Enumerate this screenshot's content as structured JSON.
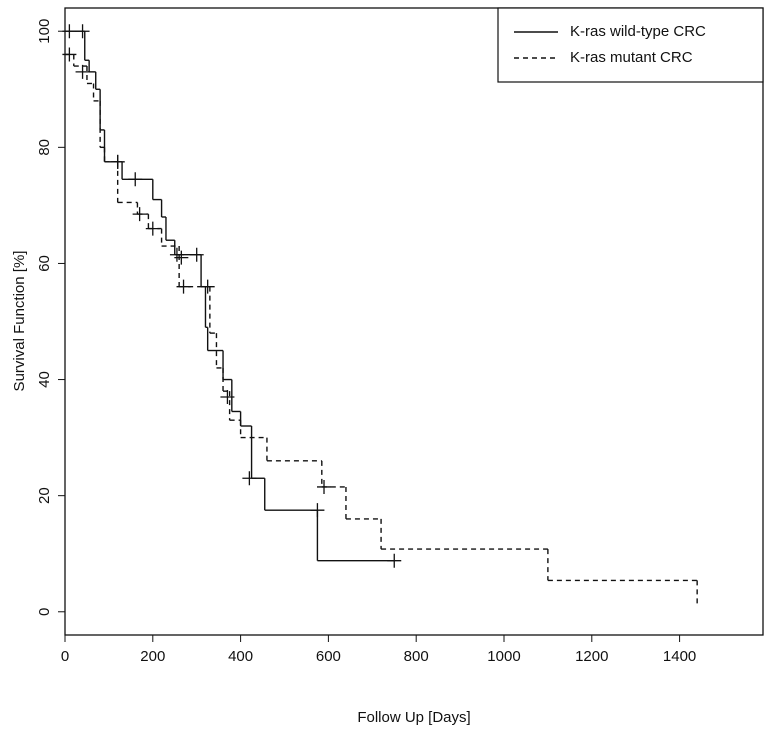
{
  "chart_data": {
    "type": "survival",
    "x_label": "Follow Up [Days]",
    "y_label": "Survival Function [%]",
    "xlim": [
      0,
      1590
    ],
    "ylim": [
      -4,
      104
    ],
    "xticks": [
      0,
      200,
      400,
      600,
      800,
      1000,
      1200,
      1400
    ],
    "yticks": [
      0,
      20,
      40,
      60,
      80,
      100
    ],
    "legend": "top-right",
    "series": [
      {
        "name": "K-ras wild-type CRC",
        "color": "#111111",
        "dash": "solid",
        "x": [
          0,
          45,
          55,
          70,
          80,
          90,
          130,
          200,
          220,
          230,
          250,
          310,
          320,
          325,
          360,
          380,
          400,
          425,
          455,
          575,
          750
        ],
        "values": [
          100,
          95,
          93,
          90,
          83,
          77.5,
          74.5,
          71,
          68,
          64,
          61.5,
          56,
          49,
          45,
          40,
          34.5,
          32,
          23,
          17.5,
          8.8,
          8.8
        ],
        "censor_x": [
          10,
          40,
          120,
          160,
          255,
          300,
          325,
          420,
          575,
          750
        ],
        "censor_values": [
          100,
          100,
          77.5,
          74.5,
          61.5,
          61.5,
          56,
          23,
          17.5,
          8.8
        ]
      },
      {
        "name": "K-ras mutant CRC",
        "color": "#111111",
        "dash": "dashed",
        "x": [
          0,
          20,
          50,
          65,
          80,
          90,
          120,
          165,
          190,
          220,
          260,
          330,
          345,
          360,
          375,
          400,
          460,
          585,
          640,
          720,
          1100,
          1440
        ],
        "values": [
          96,
          94,
          91,
          88,
          80,
          77.5,
          70.5,
          68.5,
          66,
          63,
          56,
          48,
          42,
          38,
          33,
          30,
          26,
          21.5,
          16,
          10.8,
          5.4,
          1
        ],
        "censor_x": [
          10,
          40,
          120,
          170,
          200,
          265,
          270,
          370,
          590
        ],
        "censor_values": [
          96,
          93,
          77.5,
          68.5,
          66,
          61,
          56,
          37,
          21.5
        ]
      }
    ]
  }
}
